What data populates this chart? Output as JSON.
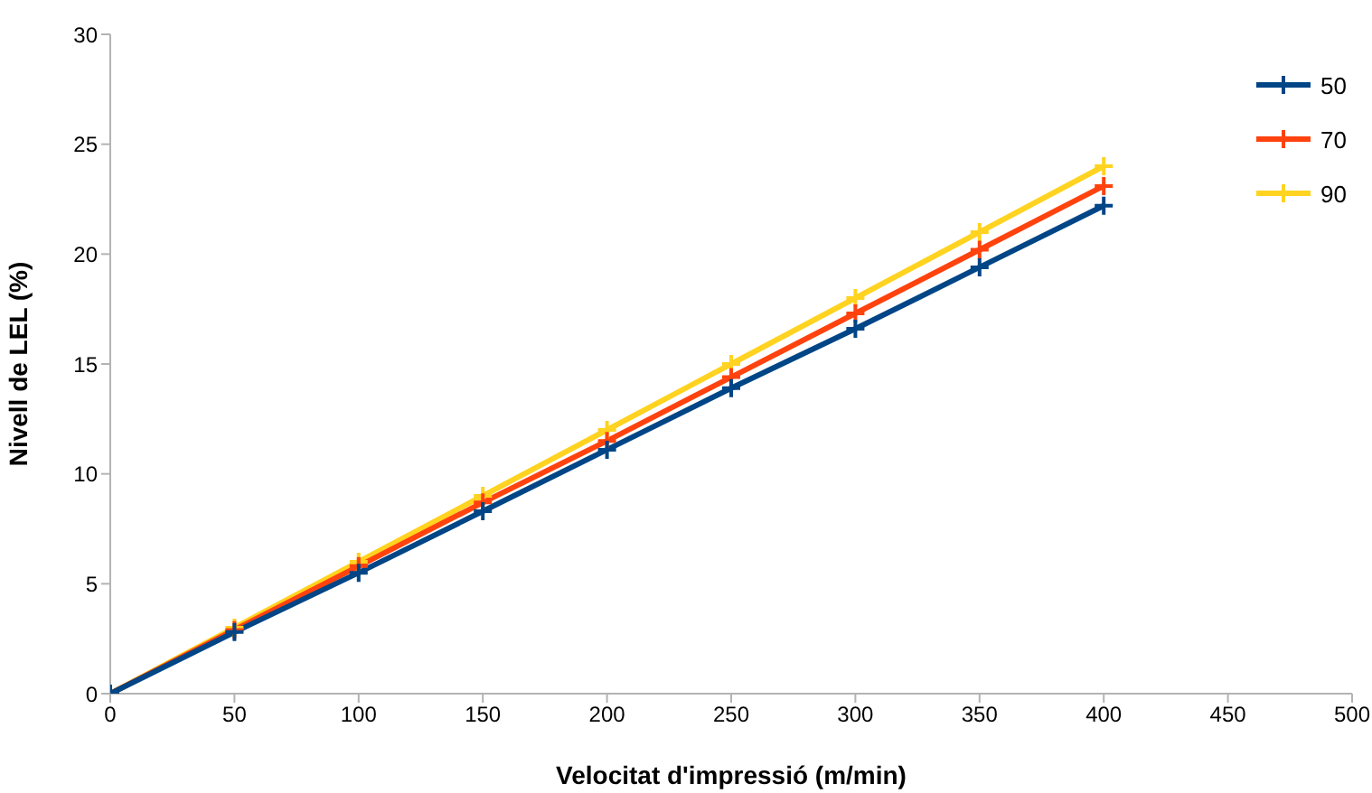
{
  "chart_data": {
    "type": "line",
    "xlabel": "Velocitat d'impressió (m/min)",
    "ylabel": "Nivell de LEL (%)",
    "x": [
      0,
      50,
      100,
      150,
      200,
      250,
      300,
      350,
      400
    ],
    "series": [
      {
        "name": "50",
        "color": "#004586",
        "values": [
          0,
          2.8,
          5.5,
          8.3,
          11.1,
          13.9,
          16.6,
          19.4,
          22.2
        ]
      },
      {
        "name": "70",
        "color": "#ff420e",
        "values": [
          0,
          2.9,
          5.8,
          8.7,
          11.5,
          14.4,
          17.3,
          20.2,
          23.1
        ]
      },
      {
        "name": "90",
        "color": "#ffd320",
        "values": [
          0,
          3,
          6,
          9,
          12,
          15,
          18,
          21,
          24
        ]
      }
    ],
    "xlim": [
      0,
      500
    ],
    "xticks": [
      0,
      50,
      100,
      150,
      200,
      250,
      300,
      350,
      400,
      450,
      500
    ],
    "ylim": [
      0,
      30
    ],
    "yticks": [
      0,
      5,
      10,
      15,
      20,
      25,
      30
    ],
    "grid": false,
    "legend": "top right",
    "marker": "cross",
    "line_style": "solid"
  }
}
